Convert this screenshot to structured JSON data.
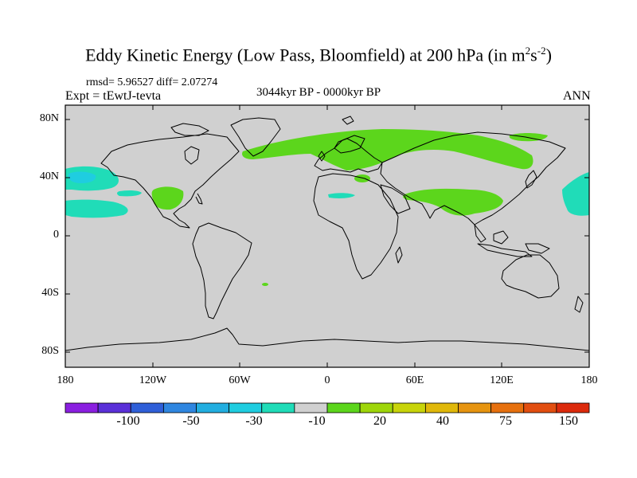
{
  "title": {
    "main": "Eddy Kinetic Energy (Low Pass, Bloomfield) at 200 hPa (in m",
    "sup1": "2",
    "mid": "s",
    "sup2": "-2",
    "end": ")"
  },
  "stats": "rmsd= 5.96527 diff= 2.07274",
  "expt": "Expt = tEwtJ-tevta",
  "period": "3044kyr BP - 0000kyr BP",
  "season": "ANN",
  "y_ticks": [
    "80N",
    "40N",
    "0",
    "40S",
    "80S"
  ],
  "x_ticks": [
    "180",
    "120W",
    "60W",
    "0",
    "60E",
    "120E",
    "180"
  ],
  "colorbar": {
    "colors": [
      "#8a1fe0",
      "#5a30d8",
      "#2f5fd8",
      "#2f86e0",
      "#22aee0",
      "#1fcde0",
      "#20dcb8",
      "#d0d0d0",
      "#5cd61c",
      "#9ed60a",
      "#c8d40a",
      "#e0b80a",
      "#e69410",
      "#e6700e",
      "#e24e10",
      "#dc2a0c"
    ],
    "labels": [
      "-100",
      "-50",
      "-30",
      "-10",
      "20",
      "40",
      "75",
      "150"
    ]
  },
  "map": {
    "background": "#d0d0d0",
    "positive_color": "#5cd61c",
    "negative_color": "#20dcb8",
    "negative_dark": "#1fcde0"
  }
}
